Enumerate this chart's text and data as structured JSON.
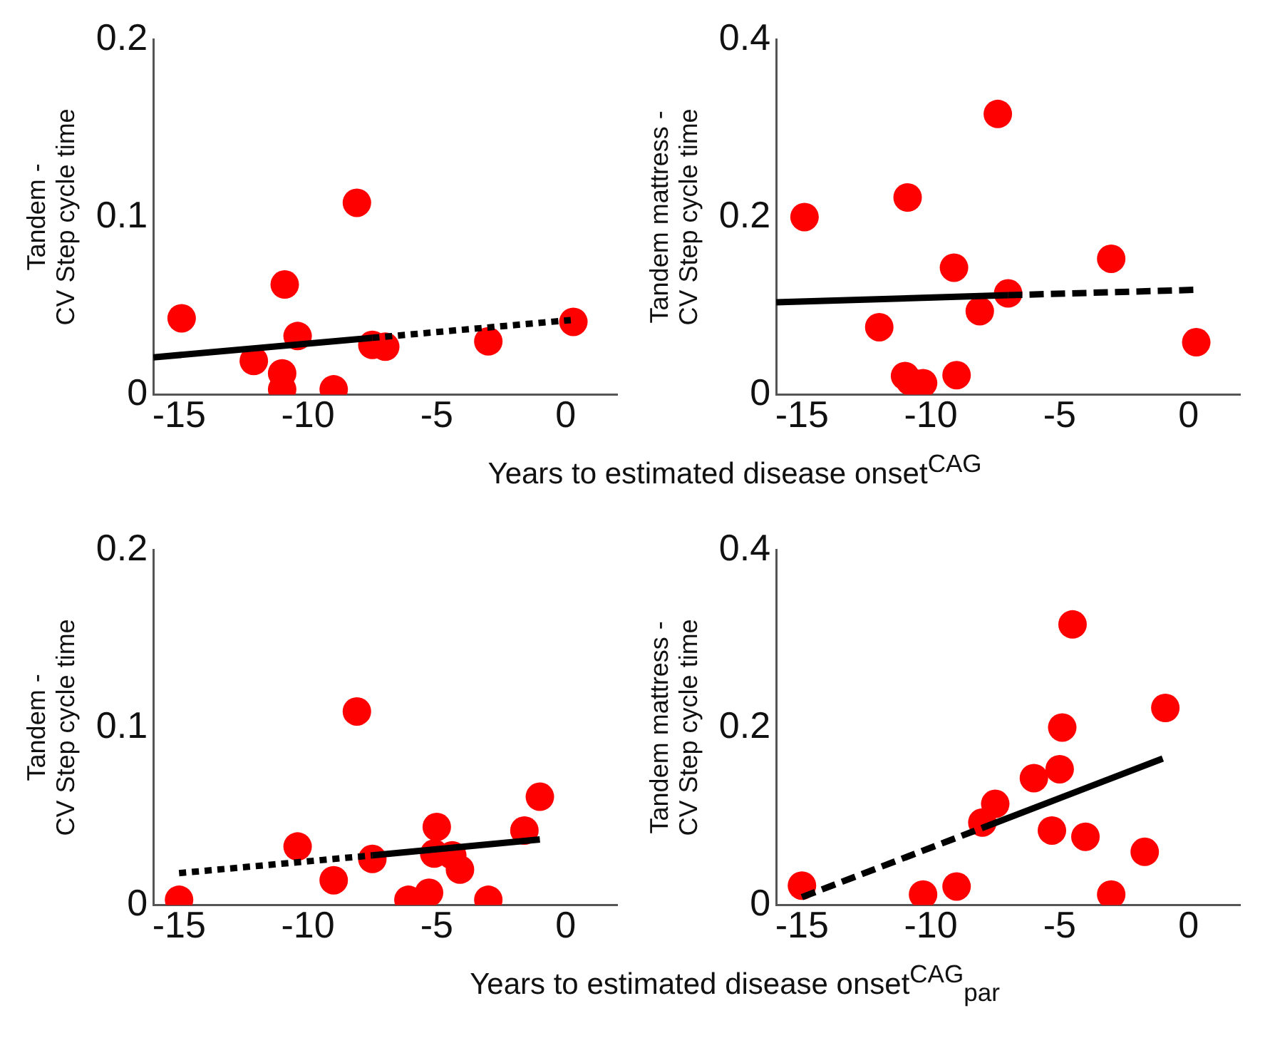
{
  "chart_data": [
    {
      "type": "scatter",
      "ylabel": "Tandem -\nCV Step cycle time",
      "xlim": [
        -16,
        2
      ],
      "xticks": [
        -15,
        -10,
        -5,
        0
      ],
      "ylim": [
        0,
        0.2
      ],
      "yticks": [
        0,
        0.1,
        0.2
      ],
      "grid": false,
      "legend": false,
      "series": [
        {
          "type": "scatter",
          "marker": "circle",
          "color": "#ff0000",
          "x": [
            -14.9,
            -10.9,
            -8.1,
            -12.1,
            -11.0,
            -11.0,
            -10.4,
            -9.0,
            -7.5,
            -7.0,
            -3.0,
            0.3
          ],
          "values": [
            0.043,
            0.062,
            0.108,
            0.019,
            0.012,
            0.003,
            0.033,
            0.003,
            0.028,
            0.027,
            0.03,
            0.041
          ]
        },
        {
          "type": "line",
          "marker": "none",
          "line_style": "solid",
          "color": "#000000",
          "x": [
            -16,
            -7.5
          ],
          "values": [
            0.021,
            0.032
          ]
        },
        {
          "type": "line",
          "marker": "none",
          "line_style": "dotted",
          "color": "#000000",
          "x": [
            -7.5,
            0.2
          ],
          "values": [
            0.032,
            0.042
          ]
        }
      ]
    },
    {
      "type": "scatter",
      "ylabel": "Tandem mattress -\nCV Step cycle time",
      "xlabel": "Years to estimated disease onset$^{CAG}$",
      "xlim": [
        -16,
        2
      ],
      "xticks": [
        -15,
        -10,
        -5,
        0
      ],
      "ylim": [
        0,
        0.4
      ],
      "yticks": [
        0,
        0.2,
        0.4
      ],
      "grid": false,
      "legend": false,
      "series": [
        {
          "type": "scatter",
          "marker": "circle",
          "color": "#ff0000",
          "x": [
            -14.9,
            -10.9,
            -7.4,
            -9.1,
            -3.0,
            -7.0,
            -8.1,
            -12.0,
            -11.0,
            -10.3,
            -10.8,
            -9.0,
            0.3
          ],
          "values": [
            0.2,
            0.222,
            0.316,
            0.143,
            0.153,
            0.114,
            0.094,
            0.076,
            0.021,
            0.013,
            0.015,
            0.022,
            0.059
          ]
        },
        {
          "type": "line",
          "marker": "none",
          "line_style": "solid",
          "color": "#000000",
          "x": [
            -16,
            -7
          ],
          "values": [
            0.104,
            0.112
          ]
        },
        {
          "type": "line",
          "marker": "none",
          "line_style": "dashed",
          "color": "#000000",
          "x": [
            -7,
            0.2
          ],
          "values": [
            0.112,
            0.118
          ]
        }
      ]
    },
    {
      "type": "scatter",
      "ylabel": "Tandem -\nCV Step cycle time",
      "xlim": [
        -16,
        2
      ],
      "xticks": [
        -15,
        -10,
        -5,
        0
      ],
      "ylim": [
        0,
        0.2
      ],
      "yticks": [
        0,
        0.1,
        0.2
      ],
      "grid": false,
      "legend": false,
      "series": [
        {
          "type": "scatter",
          "marker": "circle",
          "color": "#ff0000",
          "x": [
            -15.0,
            -8.1,
            -10.4,
            -9.0,
            -7.5,
            -5.0,
            -5.1,
            -4.4,
            -4.1,
            -6.1,
            -5.3,
            -3.0,
            -1.6,
            -1.0
          ],
          "values": [
            0.003,
            0.109,
            0.033,
            0.014,
            0.026,
            0.044,
            0.029,
            0.028,
            0.02,
            0.003,
            0.007,
            0.003,
            0.042,
            0.061
          ]
        },
        {
          "type": "line",
          "marker": "none",
          "line_style": "dotted",
          "color": "#000000",
          "x": [
            -15,
            -7.5
          ],
          "values": [
            0.018,
            0.028
          ]
        },
        {
          "type": "line",
          "marker": "none",
          "line_style": "solid",
          "color": "#000000",
          "x": [
            -7.5,
            -1
          ],
          "values": [
            0.028,
            0.037
          ]
        }
      ]
    },
    {
      "type": "scatter",
      "ylabel": "Tandem mattress -\nCV Step cycle time",
      "xlabel": "Years to estimated disease onset$^{CAG}$$_{par}$",
      "xlim": [
        -16,
        2
      ],
      "xticks": [
        -15,
        -10,
        -5,
        0
      ],
      "ylim": [
        0,
        0.4
      ],
      "yticks": [
        0,
        0.2,
        0.4
      ],
      "grid": false,
      "legend": false,
      "series": [
        {
          "type": "scatter",
          "marker": "circle",
          "color": "#ff0000",
          "x": [
            -15.0,
            -10.3,
            -9.0,
            -8.0,
            -7.5,
            -6.0,
            -5.0,
            -4.9,
            -4.5,
            -5.3,
            -4.0,
            -3.0,
            -1.7,
            -0.9
          ],
          "values": [
            0.022,
            0.012,
            0.021,
            0.093,
            0.114,
            0.143,
            0.153,
            0.2,
            0.316,
            0.084,
            0.077,
            0.012,
            0.06,
            0.222
          ]
        },
        {
          "type": "line",
          "marker": "none",
          "line_style": "dashed",
          "color": "#000000",
          "x": [
            -15,
            -8
          ],
          "values": [
            0.009,
            0.087
          ]
        },
        {
          "type": "line",
          "marker": "none",
          "line_style": "solid",
          "color": "#000000",
          "x": [
            -8,
            -1
          ],
          "values": [
            0.087,
            0.165
          ]
        }
      ]
    }
  ]
}
